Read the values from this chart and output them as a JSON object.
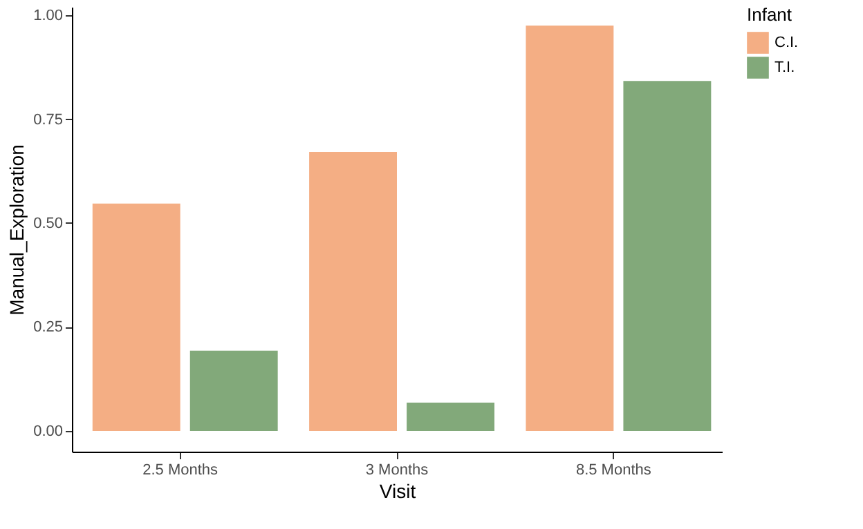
{
  "chart_data": {
    "type": "bar",
    "xlabel": "Visit",
    "ylabel": "Manual_Exploration",
    "legend_title": "Infant",
    "legend": "right",
    "categories": [
      "2.5 Months",
      "3 Months",
      "8.5 Months"
    ],
    "series": [
      {
        "name": "C.I.",
        "color": "#f4ae84",
        "values": [
          0.547,
          0.671,
          0.975
        ]
      },
      {
        "name": "T.I.",
        "color": "#82a97a",
        "values": [
          0.193,
          0.068,
          0.842
        ]
      }
    ],
    "ylim": [
      -0.05,
      1.02
    ],
    "yticks": [
      {
        "value": 0,
        "label": "0.00"
      },
      {
        "value": 0.25,
        "label": "0.25"
      },
      {
        "value": 0.5,
        "label": "0.50"
      },
      {
        "value": 0.75,
        "label": "0.75"
      },
      {
        "value": 1,
        "label": "1.00"
      }
    ],
    "grid": false
  }
}
